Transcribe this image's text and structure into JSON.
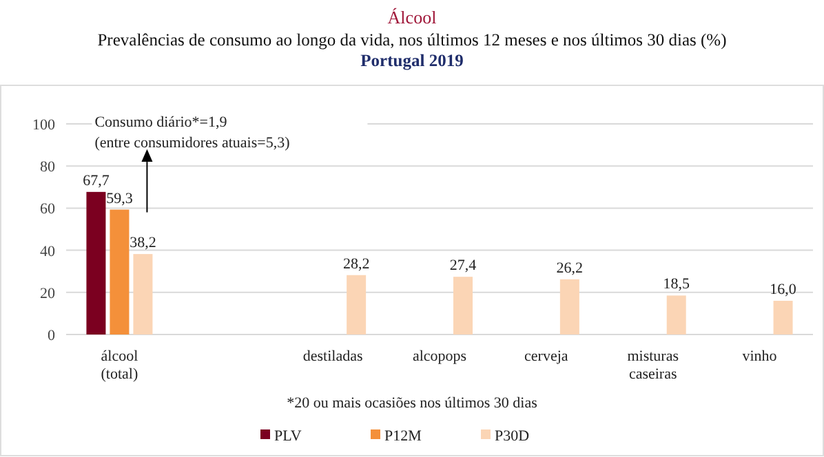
{
  "chart_data": {
    "type": "bar",
    "title": "Álcool",
    "subtitle": "Prevalências de consumo ao longo da vida, nos últimos 12 meses e nos últimos 30 dias (%)",
    "annotations": [
      "Portugal 2019",
      "Consumo diário*=1,9\n(entre consumidores atuais=5,3)",
      "*20 ou mais ocasiões nos últimos 30 dias"
    ],
    "categories": [
      "álcool (total)",
      null,
      "destiladas",
      "alcopops",
      "cerveja",
      "misturas caseiras",
      "vinho"
    ],
    "series": [
      {
        "name": "PLV",
        "color": "#7b0020",
        "values": [
          67.7,
          null,
          null,
          null,
          null,
          null,
          null
        ],
        "value_labels": [
          "67,7",
          null,
          null,
          null,
          null,
          null,
          null
        ]
      },
      {
        "name": "P12M",
        "color": "#f4903a",
        "values": [
          59.3,
          null,
          null,
          null,
          null,
          null,
          null
        ],
        "value_labels": [
          "59,3",
          null,
          null,
          null,
          null,
          null,
          null
        ]
      },
      {
        "name": "P30D",
        "color": "#fbd5b5",
        "values": [
          38.2,
          null,
          28.2,
          27.4,
          26.2,
          18.5,
          16.0
        ],
        "value_labels": [
          "38,2",
          null,
          "28,2",
          "27,4",
          "26,2",
          "18,5",
          "16,0"
        ]
      }
    ],
    "ylim": [
      0,
      100
    ],
    "yticks": [
      0,
      20,
      40,
      60,
      80,
      100
    ],
    "grid": "y",
    "legend": "bottom"
  }
}
